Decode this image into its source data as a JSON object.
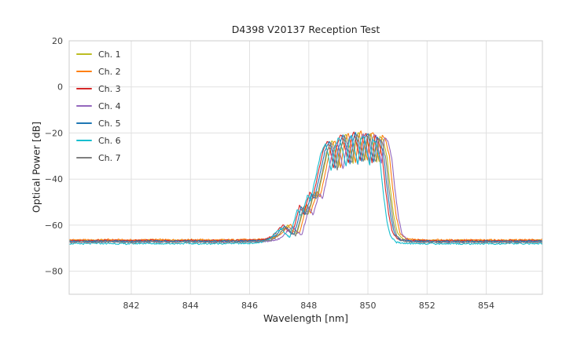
{
  "chart_data": {
    "type": "line",
    "title": "D4398 V20137 Reception Test",
    "xlabel": "Wavelength [nm]",
    "ylabel": "Optical Power [dB]",
    "xlim": [
      839.9,
      855.9
    ],
    "ylim": [
      -90,
      20
    ],
    "xticks": [
      842,
      844,
      846,
      848,
      850,
      852,
      854
    ],
    "yticks": [
      20,
      0,
      -20,
      -40,
      -60,
      -80
    ],
    "grid": true,
    "legend_position": "upper left",
    "noise_db": 0.35,
    "base_shape": {
      "x": [
        840.0,
        840.5,
        841.0,
        841.5,
        842.0,
        842.5,
        843.0,
        843.5,
        844.0,
        844.5,
        845.0,
        845.5,
        846.0,
        846.4,
        846.7,
        846.9,
        847.05,
        847.2,
        847.35,
        847.5,
        847.62,
        847.75,
        847.88,
        848.0,
        848.1,
        848.2,
        848.3,
        848.45,
        848.55,
        848.7,
        848.8,
        848.9,
        849.0,
        849.15,
        849.3,
        849.4,
        849.5,
        849.58,
        849.7,
        849.8,
        849.9,
        850.0,
        850.1,
        850.2,
        850.3,
        850.42,
        850.55,
        850.65,
        850.78,
        850.9,
        851.1,
        851.5,
        852.0,
        852.5,
        853.0,
        853.5,
        854.0,
        854.5,
        855.0,
        855.5,
        856.0
      ],
      "y": [
        -67.0,
        -67.1,
        -66.9,
        -67.0,
        -67.1,
        -66.9,
        -67.0,
        -67.0,
        -66.9,
        -67.1,
        -67.0,
        -66.9,
        -66.9,
        -66.7,
        -65.9,
        -64.2,
        -61.9,
        -60.4,
        -62.8,
        -64.2,
        -58.5,
        -51.8,
        -55.5,
        -50.5,
        -46.0,
        -48.5,
        -42.5,
        -33.5,
        -27.5,
        -23.6,
        -28.5,
        -36.0,
        -26.5,
        -20.6,
        -27.5,
        -33.5,
        -23.0,
        -19.6,
        -26.5,
        -32.5,
        -21.8,
        -20.2,
        -27.0,
        -33.0,
        -21.6,
        -23.5,
        -31.0,
        -44.0,
        -57.0,
        -64.0,
        -66.5,
        -67.0,
        -67.0,
        -67.1,
        -67.0,
        -67.1,
        -67.0,
        -67.1,
        -67.0,
        -67.0,
        -67.0
      ]
    },
    "series": [
      {
        "name": "Ch. 1",
        "color": "#bcbd22",
        "dx": 0.1,
        "dy": 0.4
      },
      {
        "name": "Ch. 2",
        "color": "#ff7f0e",
        "dx": 0.18,
        "dy": 0.6
      },
      {
        "name": "Ch. 3",
        "color": "#d62728",
        "dx": -0.06,
        "dy": 0.3
      },
      {
        "name": "Ch. 4",
        "color": "#9467bd",
        "dx": 0.26,
        "dy": -0.2
      },
      {
        "name": "Ch. 5",
        "color": "#1f77b4",
        "dx": 0.0,
        "dy": 0.0
      },
      {
        "name": "Ch. 6",
        "color": "#17becf",
        "dx": -0.14,
        "dy": -1.0
      },
      {
        "name": "Ch. 7",
        "color": "#7f7f7f",
        "dx": 0.06,
        "dy": -0.4
      }
    ]
  }
}
